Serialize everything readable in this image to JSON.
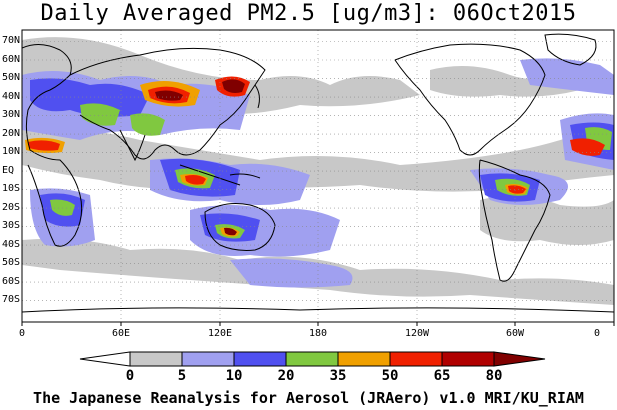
{
  "title": "Daily Averaged PM2.5 [ug/m3]: 06Oct2015",
  "credit": "The Japanese Reanalysis for Aerosol (JRAero) v1.0 MRI/KU_RIAM",
  "lat_labels": [
    "70N",
    "60N",
    "50N",
    "40N",
    "30N",
    "20N",
    "10N",
    "EQ",
    "10S",
    "20S",
    "30S",
    "40S",
    "50S",
    "60S",
    "70S"
  ],
  "lon_labels": [
    "0",
    "60E",
    "120E",
    "180",
    "120W",
    "60W",
    "0"
  ],
  "colorbar": {
    "levels": [
      "0",
      "5",
      "10",
      "20",
      "35",
      "50",
      "65",
      "80"
    ],
    "colors": [
      "#ffffff",
      "#c8c8c8",
      "#a0a0f0",
      "#5050f0",
      "#80c840",
      "#f0a000",
      "#f02000",
      "#800000"
    ]
  }
}
